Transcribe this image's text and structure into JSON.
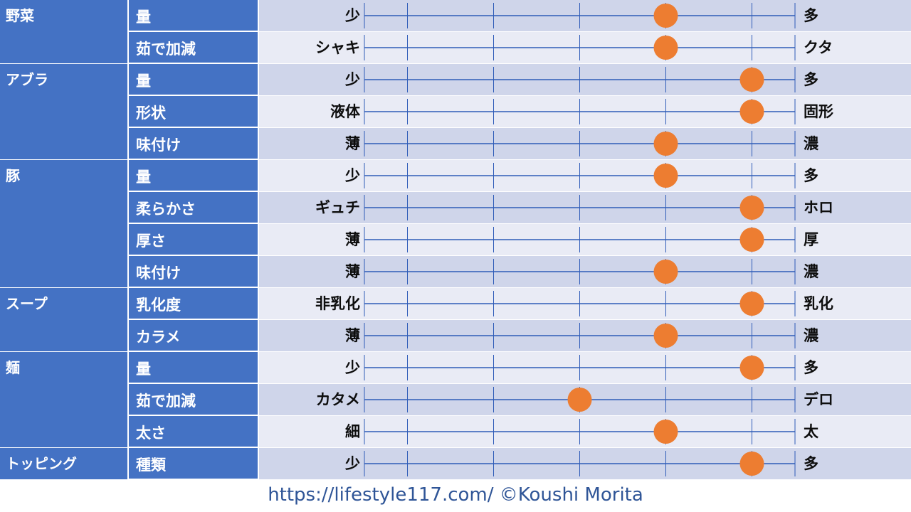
{
  "chart_data": {
    "type": "scatter",
    "scale": [
      0,
      5
    ],
    "marker_color": "#ed7d31",
    "line_color": "#2f5cb8",
    "header_color": "#4472c4",
    "band_colors": [
      "#cfd5ea",
      "#e9ebf5"
    ],
    "categories": [
      {
        "name": "野菜",
        "rows": [
          {
            "label": "量",
            "left": "少",
            "right": "多",
            "value": 3.5
          },
          {
            "label": "茹で加減",
            "left": "シャキ",
            "right": "クタ",
            "value": 3.5
          }
        ]
      },
      {
        "name": "アブラ",
        "rows": [
          {
            "label": "量",
            "left": "少",
            "right": "多",
            "value": 4.5
          },
          {
            "label": "形状",
            "left": "液体",
            "right": "固形",
            "value": 4.5
          },
          {
            "label": "味付け",
            "left": "薄",
            "right": "濃",
            "value": 3.5
          }
        ]
      },
      {
        "name": "豚",
        "rows": [
          {
            "label": "量",
            "left": "少",
            "right": "多",
            "value": 3.5
          },
          {
            "label": "柔らかさ",
            "left": "ギュチ",
            "right": "ホロ",
            "value": 4.5
          },
          {
            "label": "厚さ",
            "left": "薄",
            "right": "厚",
            "value": 4.5
          },
          {
            "label": "味付け",
            "left": "薄",
            "right": "濃",
            "value": 3.5
          }
        ]
      },
      {
        "name": "スープ",
        "rows": [
          {
            "label": "乳化度",
            "left": "非乳化",
            "right": "乳化",
            "value": 4.5
          },
          {
            "label": "カラメ",
            "left": "薄",
            "right": "濃",
            "value": 3.5
          }
        ]
      },
      {
        "name": "麺",
        "rows": [
          {
            "label": "量",
            "left": "少",
            "right": "多",
            "value": 4.5
          },
          {
            "label": "茹で加減",
            "left": "カタメ",
            "right": "デロ",
            "value": 2.5
          },
          {
            "label": "太さ",
            "left": "細",
            "right": "太",
            "value": 3.5
          }
        ]
      },
      {
        "name": "トッピング",
        "rows": [
          {
            "label": "種類",
            "left": "少",
            "right": "多",
            "value": 4.5
          }
        ]
      }
    ]
  },
  "footer": {
    "text": "https://lifestyle117.com/   ©Koushi Morita"
  }
}
